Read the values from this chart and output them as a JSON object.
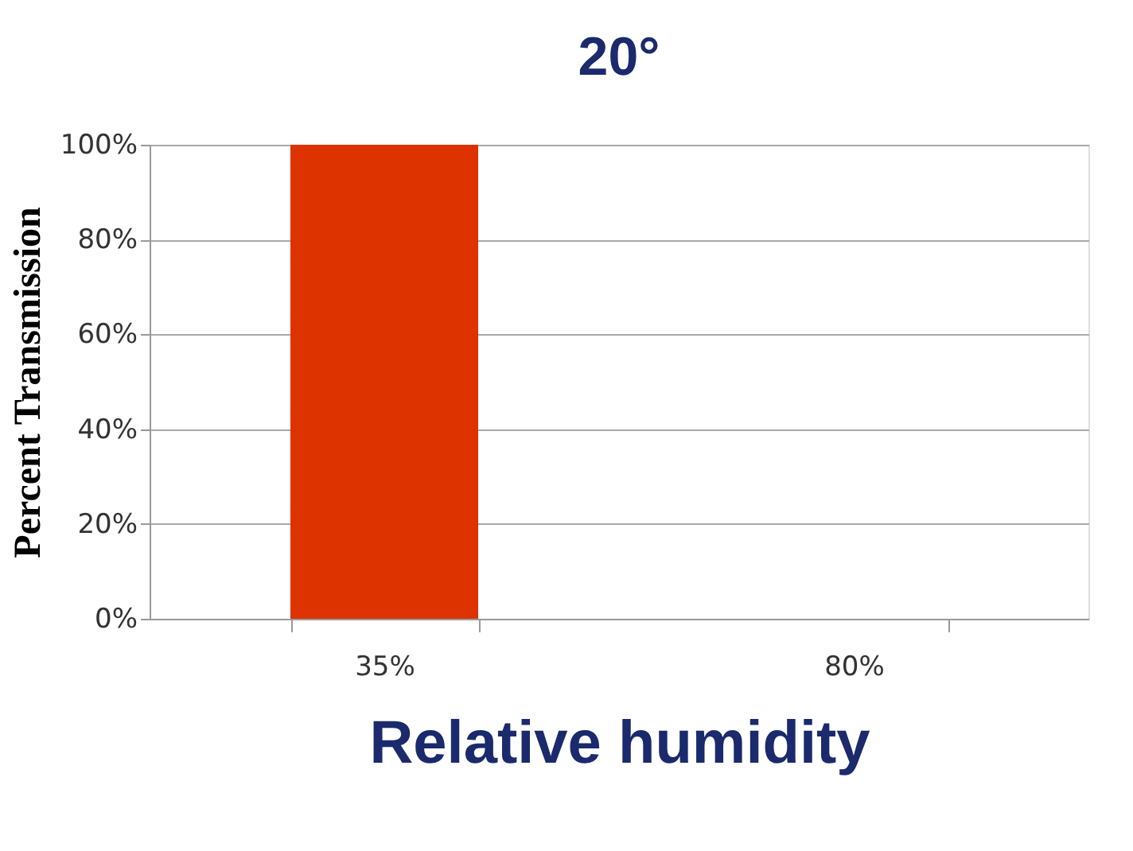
{
  "chart_data": {
    "type": "bar",
    "title": "20°",
    "xlabel": "Relative humidity",
    "ylabel": "Percent Transmission",
    "categories": [
      "35%",
      "80%"
    ],
    "values": [
      100,
      0
    ],
    "color": "#dd3300",
    "ylim": [
      0,
      100
    ],
    "yticks": [
      {
        "value": 0,
        "label": "0%"
      },
      {
        "value": 20,
        "label": "20%"
      },
      {
        "value": 40,
        "label": "40%"
      },
      {
        "value": 60,
        "label": "60%"
      },
      {
        "value": 80,
        "label": "80%"
      },
      {
        "value": 100,
        "label": "100%"
      }
    ],
    "grid": "y"
  }
}
